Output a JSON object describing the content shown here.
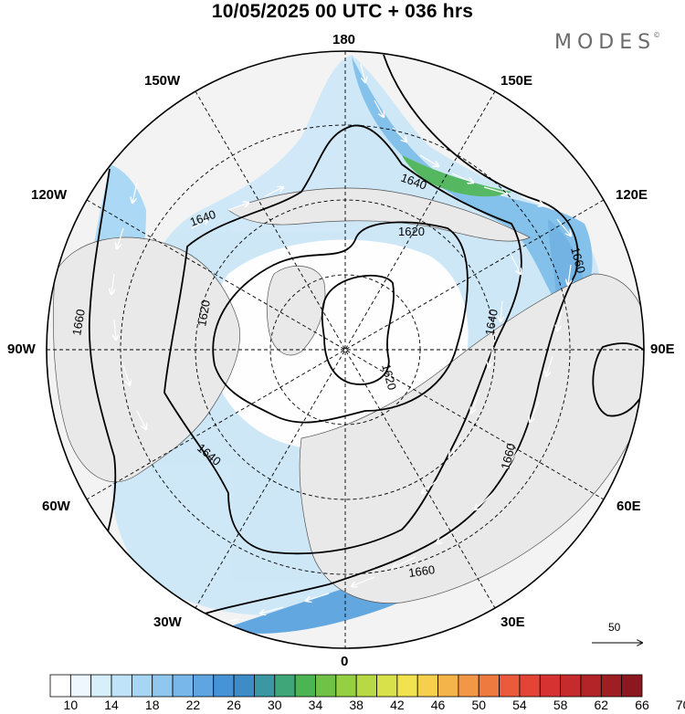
{
  "title": "10/05/2025  00 UTC  + 036 hrs",
  "brand": "MODES",
  "brand_mark": "©",
  "longitude_labels": {
    "top": "180",
    "bottom": "0",
    "left": "90W",
    "right": "90E",
    "upper_left": "150W",
    "upper_right": "150E",
    "mid_left_upper": "120W",
    "mid_right_upper": "120E",
    "mid_left_lower": "60W",
    "mid_right_lower": "60E",
    "lower_left": "30W",
    "lower_right": "30E"
  },
  "contour_labels": {
    "a": "1620",
    "b": "1620",
    "c": "1620",
    "d": "1640",
    "e": "1640",
    "f": "1640",
    "g": "1640",
    "h": "1660",
    "i": "1660",
    "j": "1660",
    "k": "1660"
  },
  "wind_reference": {
    "label": "50"
  },
  "colorbar": {
    "labels": [
      "10",
      "14",
      "18",
      "22",
      "26",
      "30",
      "34",
      "38",
      "42",
      "46",
      "50",
      "54",
      "58",
      "62",
      "66",
      "70"
    ],
    "colors": [
      "#ffffff",
      "#eef7fd",
      "#d7eefb",
      "#bfe3f8",
      "#a7d6f4",
      "#8fc7ef",
      "#77b7ea",
      "#5ea5e2",
      "#4793d8",
      "#3d8cc8",
      "#3a97a3",
      "#3fa67a",
      "#4cb553",
      "#70c247",
      "#95cf42",
      "#b7d944",
      "#d8e14a",
      "#f2e24f",
      "#f6cf4c",
      "#f4b449",
      "#f29745",
      "#ef7a40",
      "#eb5a3b",
      "#e44436",
      "#d63232",
      "#c52b2c",
      "#b22428",
      "#9f1e23",
      "#8c181f"
    ]
  }
}
